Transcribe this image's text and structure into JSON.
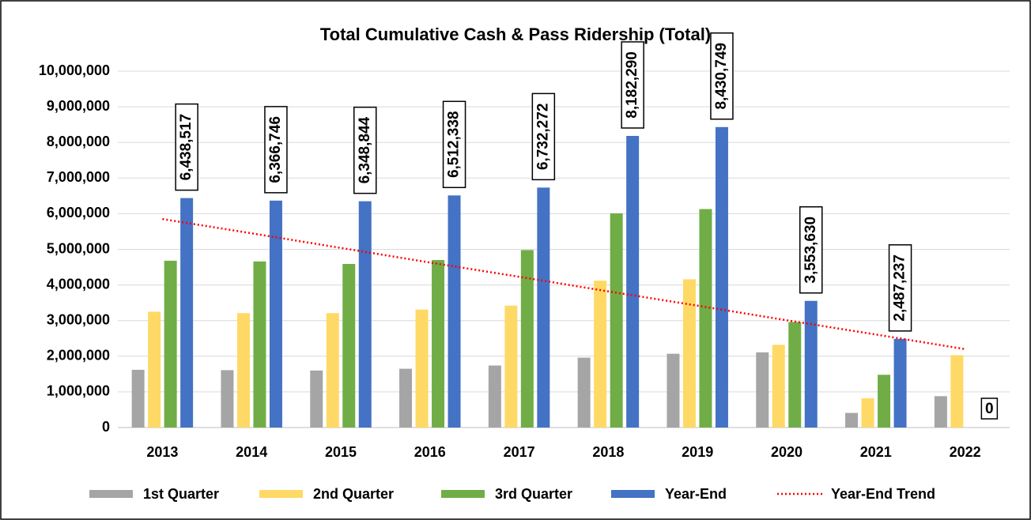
{
  "chart_data": {
    "type": "bar",
    "title": "Total Cumulative Cash & Pass Ridership (Total)",
    "categories": [
      "2013",
      "2014",
      "2015",
      "2016",
      "2017",
      "2018",
      "2019",
      "2020",
      "2021",
      "2022"
    ],
    "series": [
      {
        "name": "1st Quarter",
        "color": "#a5a5a5",
        "values": [
          1620000,
          1610000,
          1600000,
          1650000,
          1740000,
          1960000,
          2070000,
          2110000,
          410000,
          880000
        ]
      },
      {
        "name": "2nd Quarter",
        "color": "#ffd966",
        "values": [
          3250000,
          3210000,
          3210000,
          3310000,
          3420000,
          4120000,
          4160000,
          2320000,
          820000,
          2030000
        ]
      },
      {
        "name": "3rd Quarter",
        "color": "#70ad47",
        "values": [
          4680000,
          4660000,
          4590000,
          4700000,
          4980000,
          6010000,
          6130000,
          2960000,
          1480000,
          null
        ]
      },
      {
        "name": "Year-End",
        "color": "#4472c4",
        "values": [
          6438517,
          6366746,
          6348844,
          6512338,
          6732272,
          8182290,
          8430749,
          3553630,
          2487237,
          0
        ],
        "value_labels": [
          "6,438,517",
          "6,366,746",
          "6,348,844",
          "6,512,338",
          "6,732,272",
          "8,182,290",
          "8,430,749",
          "3,553,630",
          "2,487,237",
          "0"
        ]
      },
      {
        "name": "Year-End Trend",
        "type": "line",
        "color": "#ff0000",
        "values": [
          5850000,
          5450000,
          5040000,
          4630000,
          4230000,
          3820000,
          3420000,
          3010000,
          2610000,
          2200000
        ]
      }
    ],
    "ylim": [
      0,
      10000000
    ],
    "yticks": [
      0,
      {
        "value": 1000000,
        "label": "1,000,000"
      },
      {
        "value": 2000000,
        "label": "2,000,000"
      },
      {
        "value": 3000000,
        "label": "3,000,000"
      },
      {
        "value": 4000000,
        "label": "4,000,000"
      },
      {
        "value": 5000000,
        "label": "5,000,000"
      },
      {
        "value": 6000000,
        "label": "6,000,000"
      },
      {
        "value": 7000000,
        "label": "7,000,000"
      },
      {
        "value": 8000000,
        "label": "8,000,000"
      },
      {
        "value": 9000000,
        "label": "9,000,000"
      },
      {
        "value": 10000000,
        "label": "10,000,000"
      }
    ],
    "grid": true,
    "legend": "bottom"
  }
}
